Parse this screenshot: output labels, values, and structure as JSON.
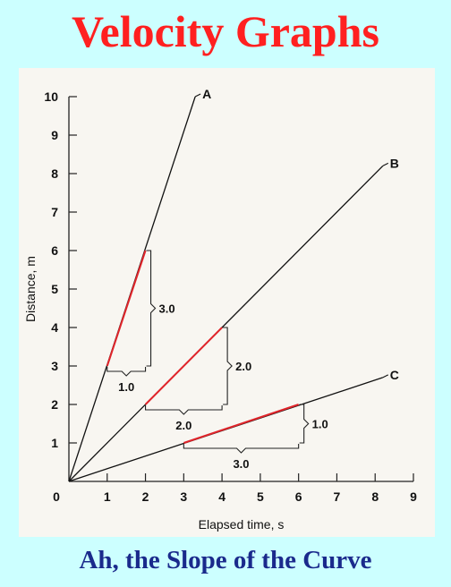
{
  "header": {
    "title": "Velocity Graphs"
  },
  "footer": {
    "caption": "Ah, the Slope of the Curve"
  },
  "colors": {
    "background": "#ccffff",
    "title": "#ff2020",
    "caption": "#1a2a8c",
    "slope_segment": "#e0242a"
  },
  "chart_data": {
    "type": "line",
    "xlabel": "Elapsed time, s",
    "ylabel": "Distance, m",
    "xlim": [
      0,
      9
    ],
    "ylim": [
      0,
      10
    ],
    "x_ticks": [
      "0",
      "1",
      "2",
      "3",
      "4",
      "5",
      "6",
      "7",
      "8",
      "9"
    ],
    "y_ticks": [
      "0",
      "1",
      "2",
      "3",
      "4",
      "5",
      "6",
      "7",
      "8",
      "9",
      "10"
    ],
    "grid": false,
    "series": [
      {
        "name": "A",
        "points": [
          [
            0,
            0
          ],
          [
            3.3,
            10
          ]
        ]
      },
      {
        "name": "B",
        "points": [
          [
            0,
            0
          ],
          [
            8.2,
            8.2
          ]
        ]
      },
      {
        "name": "C",
        "points": [
          [
            0,
            0
          ],
          [
            8.2,
            2.7
          ]
        ]
      }
    ],
    "slope_annotations": [
      {
        "series": "A",
        "from": [
          1,
          3
        ],
        "to": [
          2,
          6
        ],
        "run_label": "1.0",
        "rise_label": "3.0"
      },
      {
        "series": "B",
        "from": [
          2,
          2
        ],
        "to": [
          4,
          4
        ],
        "run_label": "2.0",
        "rise_label": "2.0"
      },
      {
        "series": "C",
        "from": [
          3,
          1
        ],
        "to": [
          6,
          2
        ],
        "run_label": "3.0",
        "rise_label": "1.0"
      }
    ]
  }
}
